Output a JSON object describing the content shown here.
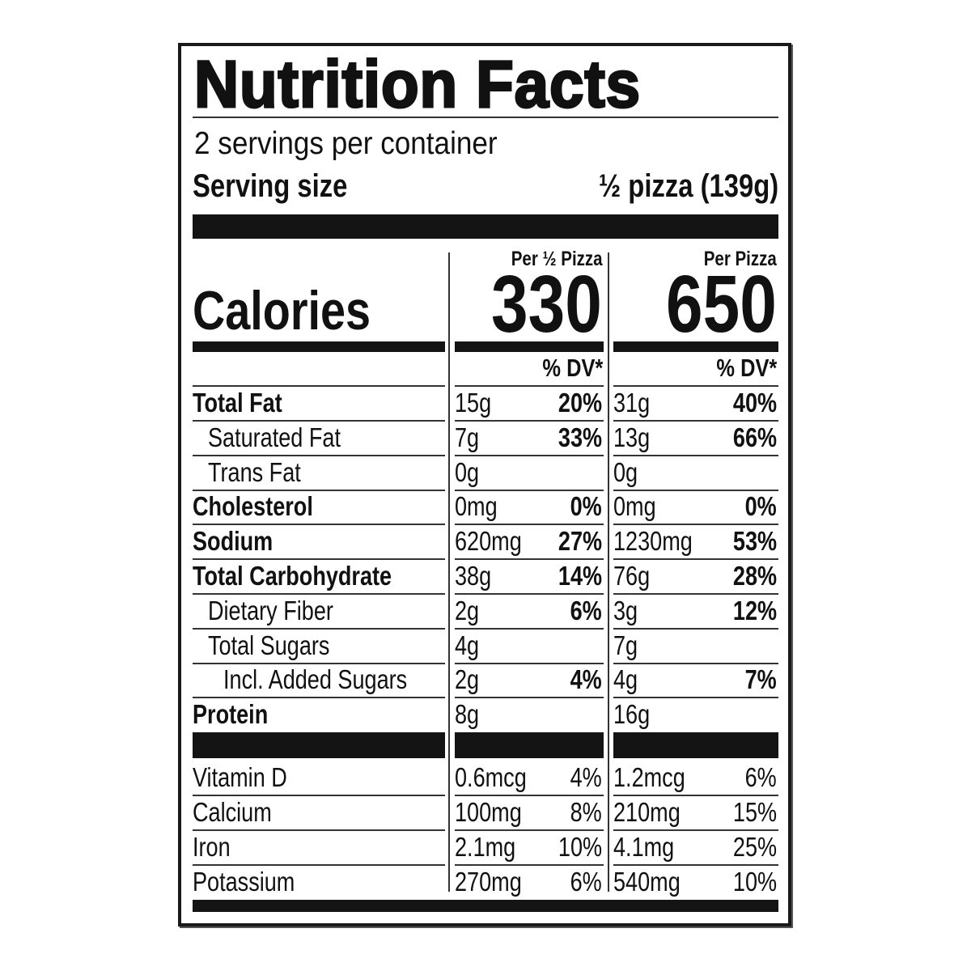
{
  "title": "Nutrition Facts",
  "servings": "2 servings per container",
  "serving_size_label": "Serving size",
  "serving_size_value": "½ pizza (139g)",
  "calories_label": "Calories",
  "columns": [
    {
      "header": "Per ½ Pizza",
      "calories": "330",
      "dv_label": "% DV*"
    },
    {
      "header": "Per Pizza",
      "calories": "650",
      "dv_label": "% DV*"
    }
  ],
  "nutrients": [
    {
      "name": "Total Fat",
      "bold": true,
      "indent": 0,
      "c1": [
        "15g",
        "20%"
      ],
      "c2": [
        "31g",
        "40%"
      ]
    },
    {
      "name": "Saturated Fat",
      "bold": false,
      "indent": 1,
      "c1": [
        "7g",
        "33%"
      ],
      "c2": [
        "13g",
        "66%"
      ]
    },
    {
      "name": "Trans Fat",
      "bold": false,
      "indent": 1,
      "c1": [
        "0g",
        ""
      ],
      "c2": [
        "0g",
        ""
      ]
    },
    {
      "name": "Cholesterol",
      "bold": true,
      "indent": 0,
      "c1": [
        "0mg",
        "0%"
      ],
      "c2": [
        "0mg",
        "0%"
      ]
    },
    {
      "name": "Sodium",
      "bold": true,
      "indent": 0,
      "c1": [
        "620mg",
        "27%"
      ],
      "c2": [
        "1230mg",
        "53%"
      ]
    },
    {
      "name": "Total Carbohydrate",
      "bold": true,
      "indent": 0,
      "c1": [
        "38g",
        "14%"
      ],
      "c2": [
        "76g",
        "28%"
      ]
    },
    {
      "name": "Dietary Fiber",
      "bold": false,
      "indent": 1,
      "c1": [
        "2g",
        "6%"
      ],
      "c2": [
        "3g",
        "12%"
      ]
    },
    {
      "name": "Total Sugars",
      "bold": false,
      "indent": 1,
      "c1": [
        "4g",
        ""
      ],
      "c2": [
        "7g",
        ""
      ]
    },
    {
      "name": "Incl. Added Sugars",
      "bold": false,
      "indent": 2,
      "c1": [
        "2g",
        "4%"
      ],
      "c2": [
        "4g",
        "7%"
      ]
    },
    {
      "name": "Protein",
      "bold": true,
      "indent": 0,
      "c1": [
        "8g",
        ""
      ],
      "c2": [
        "16g",
        ""
      ]
    }
  ],
  "vitamins": [
    {
      "name": "Vitamin D",
      "c1": [
        "0.6mcg",
        "4%"
      ],
      "c2": [
        "1.2mcg",
        "6%"
      ]
    },
    {
      "name": "Calcium",
      "c1": [
        "100mg",
        "8%"
      ],
      "c2": [
        "210mg",
        "15%"
      ]
    },
    {
      "name": "Iron",
      "c1": [
        "2.1mg",
        "10%"
      ],
      "c2": [
        "4.1mg",
        "25%"
      ]
    },
    {
      "name": "Potassium",
      "c1": [
        "270mg",
        "6%"
      ],
      "c2": [
        "540mg",
        "10%"
      ]
    }
  ]
}
